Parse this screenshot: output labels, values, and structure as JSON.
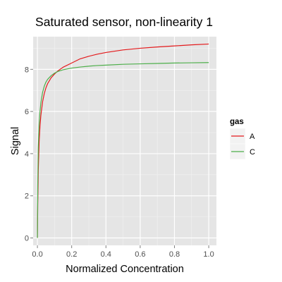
{
  "chart_data": {
    "type": "line",
    "title": "Saturated sensor, non-linearity 1",
    "xlabel": "Normalized Concentration",
    "ylabel": "Signal",
    "xlim": [
      -0.025,
      1.045
    ],
    "ylim": [
      -0.35,
      9.55
    ],
    "x_ticks": [
      0.0,
      0.2,
      0.4,
      0.6,
      0.8,
      1.0
    ],
    "x_tick_labels": [
      "0.0",
      "0.2",
      "0.4",
      "0.6",
      "0.8",
      "1.0"
    ],
    "y_ticks": [
      0,
      2,
      4,
      6,
      8
    ],
    "y_tick_labels": [
      "0",
      "2",
      "4",
      "6",
      "8"
    ],
    "grid": true,
    "legend": {
      "title": "gas",
      "position": "right"
    },
    "series": [
      {
        "name": "A",
        "color": "#e41a1c",
        "x": [
          0,
          0.002,
          0.005,
          0.01,
          0.015,
          0.02,
          0.03,
          0.04,
          0.05,
          0.06,
          0.08,
          0.1,
          0.12,
          0.15,
          0.2,
          0.25,
          0.3,
          0.35,
          0.4,
          0.5,
          0.6,
          0.7,
          0.8,
          0.9,
          1.0
        ],
        "y": [
          0,
          1.6,
          3.2,
          4.55,
          5.3,
          5.8,
          6.45,
          6.85,
          7.13,
          7.33,
          7.6,
          7.78,
          7.93,
          8.1,
          8.3,
          8.5,
          8.62,
          8.72,
          8.8,
          8.92,
          9.0,
          9.06,
          9.11,
          9.16,
          9.2
        ]
      },
      {
        "name": "C",
        "color": "#4daf4a",
        "x": [
          0,
          0.002,
          0.005,
          0.01,
          0.015,
          0.02,
          0.03,
          0.04,
          0.05,
          0.06,
          0.08,
          0.1,
          0.12,
          0.15,
          0.2,
          0.25,
          0.3,
          0.35,
          0.4,
          0.5,
          0.6,
          0.7,
          0.8,
          0.9,
          1.0
        ],
        "y": [
          0,
          2.5,
          4.3,
          5.4,
          6.0,
          6.4,
          6.9,
          7.2,
          7.4,
          7.53,
          7.7,
          7.82,
          7.9,
          7.98,
          8.06,
          8.11,
          8.15,
          8.18,
          8.2,
          8.24,
          8.26,
          8.28,
          8.3,
          8.31,
          8.32
        ]
      }
    ]
  }
}
